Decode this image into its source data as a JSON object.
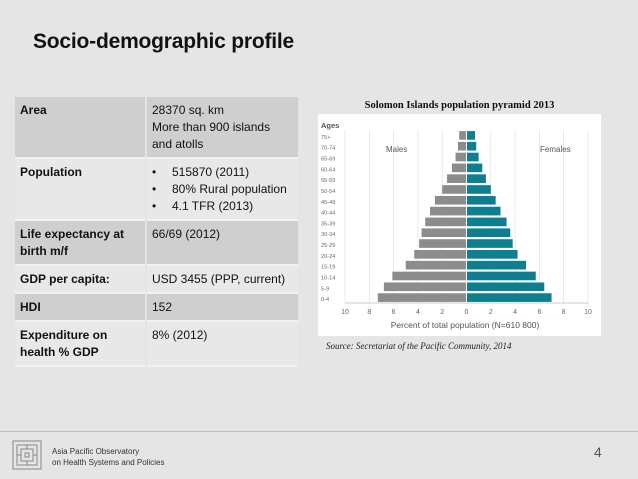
{
  "title": "Socio-demographic profile",
  "profile": {
    "area_label": "Area",
    "area_value_1": "28370 sq. km",
    "area_value_2": "More than 900 islands",
    "area_value_3": "and atolls",
    "population_label": "Population",
    "population_items": [
      "515870 (2011)",
      "80% Rural population",
      "4.1 TFR (2013)"
    ],
    "life_label_1": "Life expectancy at",
    "life_label_2": "birth m/f",
    "life_value": "66/69 (2012)",
    "gdp_label": "GDP per capita:",
    "gdp_value": "USD 3455 (PPP, current)",
    "hdi_label": "HDI",
    "hdi_value": "152",
    "exp_label_1": "Expenditure on",
    "exp_label_2": "health % GDP",
    "exp_value": "8% (2012)"
  },
  "chart_data": {
    "type": "bar",
    "orientation": "horizontal-pyramid",
    "title": "Solomon Islands population pyramid 2013",
    "axis_title": "Ages",
    "xlabel": "Percent of total population (N=610 800)",
    "x_ticks": [
      "10",
      "8",
      "6",
      "4",
      "2",
      "0",
      "2",
      "4",
      "6",
      "8",
      "10"
    ],
    "xlim": [
      -10,
      10
    ],
    "categories": [
      "75+",
      "70-74",
      "65-69",
      "60-64",
      "55-59",
      "50-54",
      "45-49",
      "40-44",
      "35-39",
      "30-34",
      "25-29",
      "20-24",
      "15-19",
      "10-14",
      "5-9",
      "0-4"
    ],
    "series": [
      {
        "name": "Males",
        "color": "#8c8c8c",
        "values": [
          0.6,
          0.7,
          0.9,
          1.2,
          1.6,
          2.0,
          2.6,
          3.0,
          3.4,
          3.7,
          3.9,
          4.3,
          5.0,
          6.1,
          6.8,
          7.3
        ]
      },
      {
        "name": "Females",
        "color": "#0f7e91",
        "values": [
          0.7,
          0.8,
          1.0,
          1.3,
          1.6,
          2.0,
          2.4,
          2.8,
          3.3,
          3.6,
          3.8,
          4.2,
          4.9,
          5.7,
          6.4,
          7.0
        ]
      }
    ],
    "grid": true,
    "legend": "inside-top"
  },
  "source": "Source: Secretariat of the Pacific Community, 2014",
  "footer": {
    "org_line_1": "Asia Pacific Observatory",
    "org_line_2": "on Health Systems and Policies"
  },
  "page_number": "4"
}
